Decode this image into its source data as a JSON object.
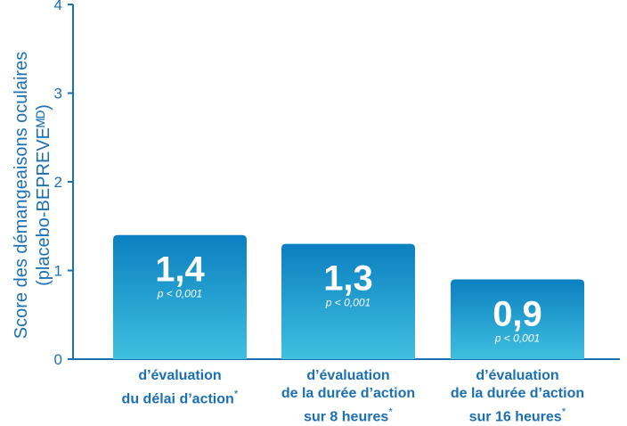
{
  "chart_data": {
    "type": "bar",
    "ylabel_lines": [
      "Score des démangeaisons oculaires",
      "(placebo-BEPREVEᴹᴰ)"
    ],
    "ylim": [
      0,
      4
    ],
    "yticks": [
      "0",
      "1",
      "2",
      "3",
      "4"
    ],
    "grid": false,
    "categories": [
      {
        "lines": [
          "d’évaluation",
          "du délai d’action"
        ],
        "note": "*"
      },
      {
        "lines": [
          "d’évaluation",
          "de la durée d’action",
          "sur 8 heures"
        ],
        "note": "*"
      },
      {
        "lines": [
          "d’évaluation",
          "de la durée d’action",
          "sur 16 heures"
        ],
        "note": "*"
      }
    ],
    "values": [
      1.4,
      1.3,
      0.9
    ],
    "value_labels": [
      "1,4",
      "1,3",
      "0,9"
    ],
    "pvalue_labels": [
      "p < 0,001",
      "p < 0,001",
      "p < 0,001"
    ],
    "colors": {
      "axis": "#1b6fb3",
      "bar_top": "#0b7fc0",
      "bar_bottom": "#3fc0e0",
      "label": "#ffffff"
    }
  }
}
